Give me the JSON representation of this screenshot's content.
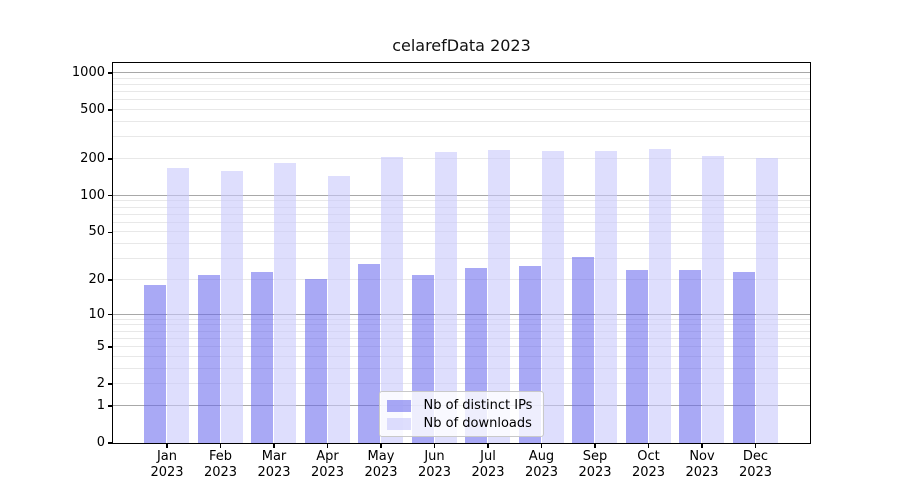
{
  "title": "celarefData 2023",
  "chart_data": {
    "type": "bar",
    "title": "celarefData 2023",
    "categories": [
      "Jan 2023",
      "Feb 2023",
      "Mar 2023",
      "Apr 2023",
      "May 2023",
      "Jun 2023",
      "Jul 2023",
      "Aug 2023",
      "Sep 2023",
      "Oct 2023",
      "Nov 2023",
      "Dec 2023"
    ],
    "series": [
      {
        "name": "Nb of distinct IPs",
        "values": [
          18,
          22,
          23,
          20,
          27,
          22,
          25,
          26,
          31,
          24,
          24,
          23
        ],
        "color": "#6666ee",
        "opacity": 0.56
      },
      {
        "name": "Nb of downloads",
        "values": [
          166,
          159,
          184,
          145,
          206,
          224,
          235,
          230,
          228,
          238,
          210,
          200
        ],
        "color": "#c8c8fc",
        "opacity": 0.6
      }
    ],
    "xlabel": "",
    "ylabel": "",
    "y_scale": "log10(1+x)",
    "ylim": [
      0,
      1000
    ],
    "y_ticks": [
      0,
      1,
      2,
      5,
      10,
      20,
      50,
      100,
      200,
      500,
      1000
    ],
    "y_major_gridlines": [
      1,
      10,
      100,
      1000
    ],
    "y_minor_gridlines": [
      2,
      3,
      4,
      5,
      6,
      7,
      8,
      9,
      20,
      30,
      40,
      50,
      60,
      70,
      80,
      90,
      200,
      300,
      400,
      500,
      600,
      700,
      800,
      900
    ],
    "grid": true,
    "legend_position": "lower-center-inside"
  },
  "style": {
    "major_grid_color": "#a8a8a8",
    "minor_grid_color": "#e8e8e8",
    "spine_color": "#000000",
    "background_color": "#ffffff"
  }
}
